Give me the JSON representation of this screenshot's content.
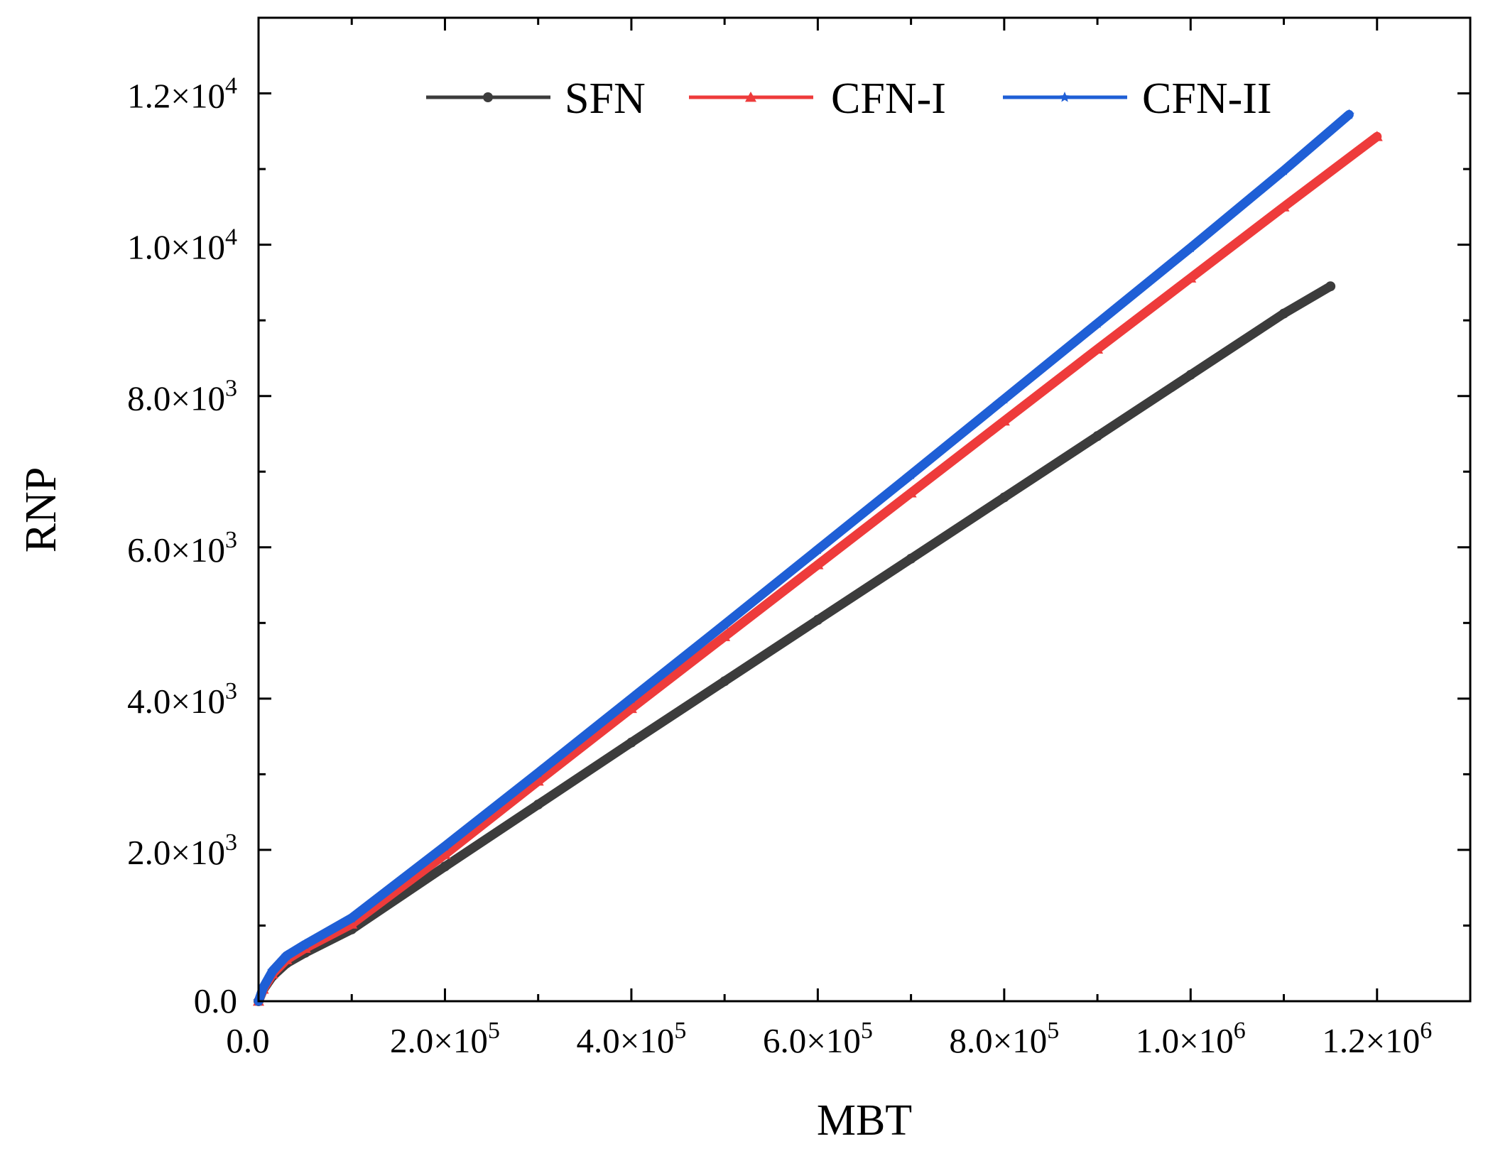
{
  "chart_data": {
    "type": "line",
    "title": "",
    "xlabel": "MBT",
    "ylabel": "RNP",
    "xlim": [
      0,
      1300000
    ],
    "ylim": [
      0,
      13000
    ],
    "x_ticks": [
      {
        "value": 0,
        "mant": "0.0",
        "exp": ""
      },
      {
        "value": 200000,
        "mant": "2.0×10",
        "exp": "5"
      },
      {
        "value": 400000,
        "mant": "4.0×10",
        "exp": "5"
      },
      {
        "value": 600000,
        "mant": "6.0×10",
        "exp": "5"
      },
      {
        "value": 800000,
        "mant": "8.0×10",
        "exp": "5"
      },
      {
        "value": 1000000,
        "mant": "1.0×10",
        "exp": "6"
      },
      {
        "value": 1200000,
        "mant": "1.2×10",
        "exp": "6"
      }
    ],
    "y_ticks": [
      {
        "value": 0,
        "mant": "0.0",
        "exp": ""
      },
      {
        "value": 2000,
        "mant": "2.0×10",
        "exp": "3"
      },
      {
        "value": 4000,
        "mant": "4.0×10",
        "exp": "3"
      },
      {
        "value": 6000,
        "mant": "6.0×10",
        "exp": "3"
      },
      {
        "value": 8000,
        "mant": "8.0×10",
        "exp": "3"
      },
      {
        "value": 10000,
        "mant": "1.0×10",
        "exp": "4"
      },
      {
        "value": 12000,
        "mant": "1.2×10",
        "exp": "4"
      }
    ],
    "x_minor_step": 100000,
    "y_minor_step": 1000,
    "legend_position": "top",
    "series": [
      {
        "name": "SFN",
        "color": "#3c3c3c",
        "marker": "circle",
        "x": [
          0,
          5000,
          15000,
          30000,
          50000,
          100000,
          200000,
          300000,
          400000,
          500000,
          600000,
          700000,
          800000,
          900000,
          1000000,
          1100000,
          1150000
        ],
        "y": [
          0,
          150,
          330,
          500,
          640,
          950,
          1780,
          2600,
          3420,
          4230,
          5040,
          5850,
          6660,
          7470,
          8280,
          9090,
          9450
        ]
      },
      {
        "name": "CFN-I",
        "color": "#ee3b3b",
        "marker": "triangle",
        "x": [
          0,
          5000,
          15000,
          30000,
          50000,
          100000,
          200000,
          300000,
          400000,
          500000,
          600000,
          700000,
          800000,
          900000,
          1000000,
          1100000,
          1200000
        ],
        "y": [
          0,
          160,
          360,
          550,
          700,
          1020,
          1940,
          2910,
          3870,
          4820,
          5770,
          6720,
          7670,
          8620,
          9560,
          10500,
          11430
        ]
      },
      {
        "name": "CFN-II",
        "color": "#1f5fd6",
        "marker": "star",
        "x": [
          0,
          5000,
          15000,
          30000,
          50000,
          100000,
          200000,
          300000,
          400000,
          500000,
          600000,
          700000,
          800000,
          900000,
          1000000,
          1100000,
          1170000
        ],
        "y": [
          0,
          180,
          400,
          600,
          750,
          1100,
          2050,
          3020,
          4000,
          4980,
          5970,
          6960,
          7960,
          8960,
          9960,
          10980,
          11720
        ]
      }
    ]
  }
}
